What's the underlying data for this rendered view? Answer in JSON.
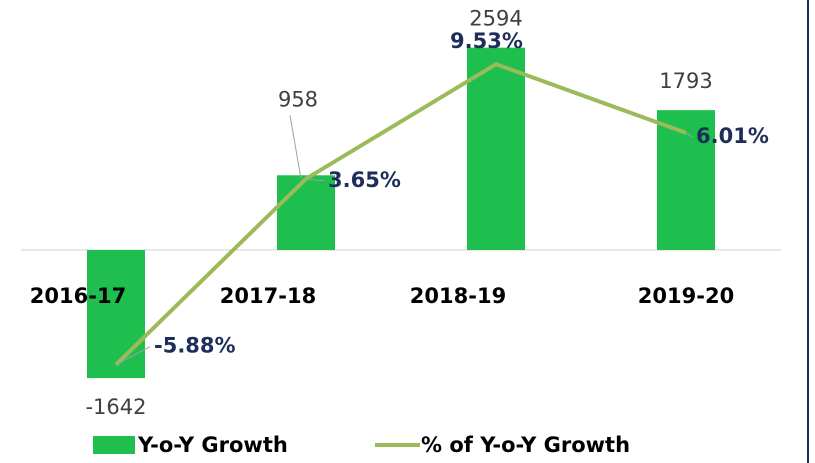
{
  "chart_data": {
    "type": "bar",
    "categories": [
      "2016-17",
      "2017-18",
      "2018-19",
      "2019-20"
    ],
    "series": [
      {
        "name": "Y-o-Y Growth",
        "type": "bar",
        "color": "#1fbf4f",
        "values": [
          -1642,
          958,
          2594,
          1793
        ]
      },
      {
        "name": "% of Y-o-Y Growth",
        "type": "line",
        "axis": "y2",
        "color": "#9bbb59",
        "values": [
          -5.88,
          3.65,
          9.53,
          6.01
        ],
        "value_labels": [
          "-5.88%",
          "3.65%",
          "9.53%",
          "6.01%"
        ]
      }
    ],
    "ylim": [
      -2000,
      3000
    ],
    "y2lim": [
      -8,
      12
    ],
    "legend": "bottom"
  }
}
